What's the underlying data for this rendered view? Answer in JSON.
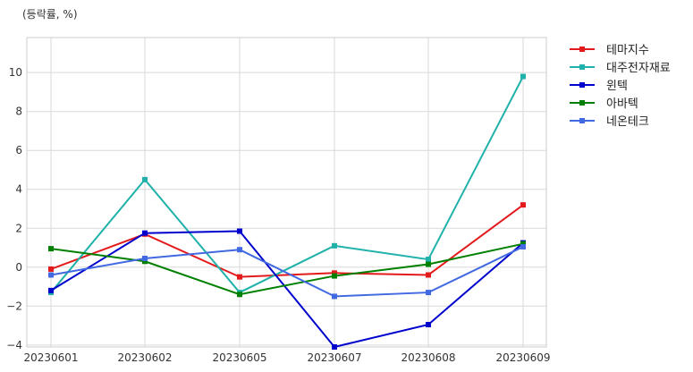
{
  "chart_data": {
    "type": "line",
    "unit_label": "(등락률, %)",
    "categories": [
      "20230601",
      "20230602",
      "20230605",
      "20230607",
      "20230608",
      "20230609"
    ],
    "y_ticks": [
      -4,
      -2,
      0,
      2,
      4,
      6,
      8,
      10
    ],
    "ylim": [
      -4.1,
      11.8
    ],
    "grid": true,
    "legend_position": "top-right-outside",
    "series": [
      {
        "name": "테마지수",
        "color": "#e31a1c",
        "values": [
          -0.1,
          1.7,
          -0.5,
          -0.3,
          -0.4,
          3.2
        ]
      },
      {
        "name": "대주전자재료",
        "color": "#20b2aa",
        "values": [
          -1.3,
          4.5,
          -1.3,
          1.1,
          0.4,
          9.8
        ]
      },
      {
        "name": "윈텍",
        "color": "#0000cd",
        "values": [
          -1.2,
          1.75,
          1.85,
          -4.1,
          -2.95,
          1.25
        ]
      },
      {
        "name": "아바텍",
        "color": "#008000",
        "values": [
          0.95,
          0.3,
          -1.4,
          -0.45,
          0.15,
          1.2
        ]
      },
      {
        "name": "네온테크",
        "color": "#4169e1",
        "values": [
          -0.4,
          0.45,
          0.9,
          -1.5,
          -1.3,
          1.05
        ]
      }
    ]
  }
}
